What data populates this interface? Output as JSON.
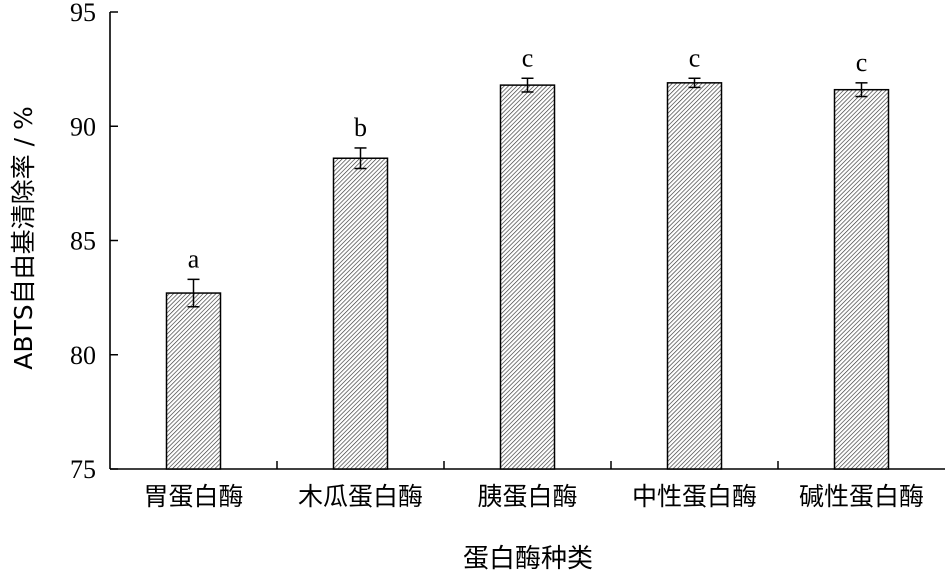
{
  "chart_data": {
    "type": "bar",
    "title": "",
    "xlabel": "蛋白酶种类",
    "ylabel": "ABTS自由基清除率 / %",
    "ylim": [
      75,
      95
    ],
    "yticks": [
      75,
      80,
      85,
      90,
      95
    ],
    "grid": false,
    "categories": [
      "胃蛋白酶",
      "木瓜蛋白酶",
      "胰蛋白酶",
      "中性蛋白酶",
      "碱性蛋白酶"
    ],
    "values": [
      82.7,
      88.6,
      91.8,
      91.9,
      91.6
    ],
    "errors": [
      0.6,
      0.45,
      0.3,
      0.2,
      0.3
    ],
    "significance_labels": [
      "a",
      "b",
      "c",
      "c",
      "c"
    ],
    "bar_fill": "diagonal-hatch"
  }
}
